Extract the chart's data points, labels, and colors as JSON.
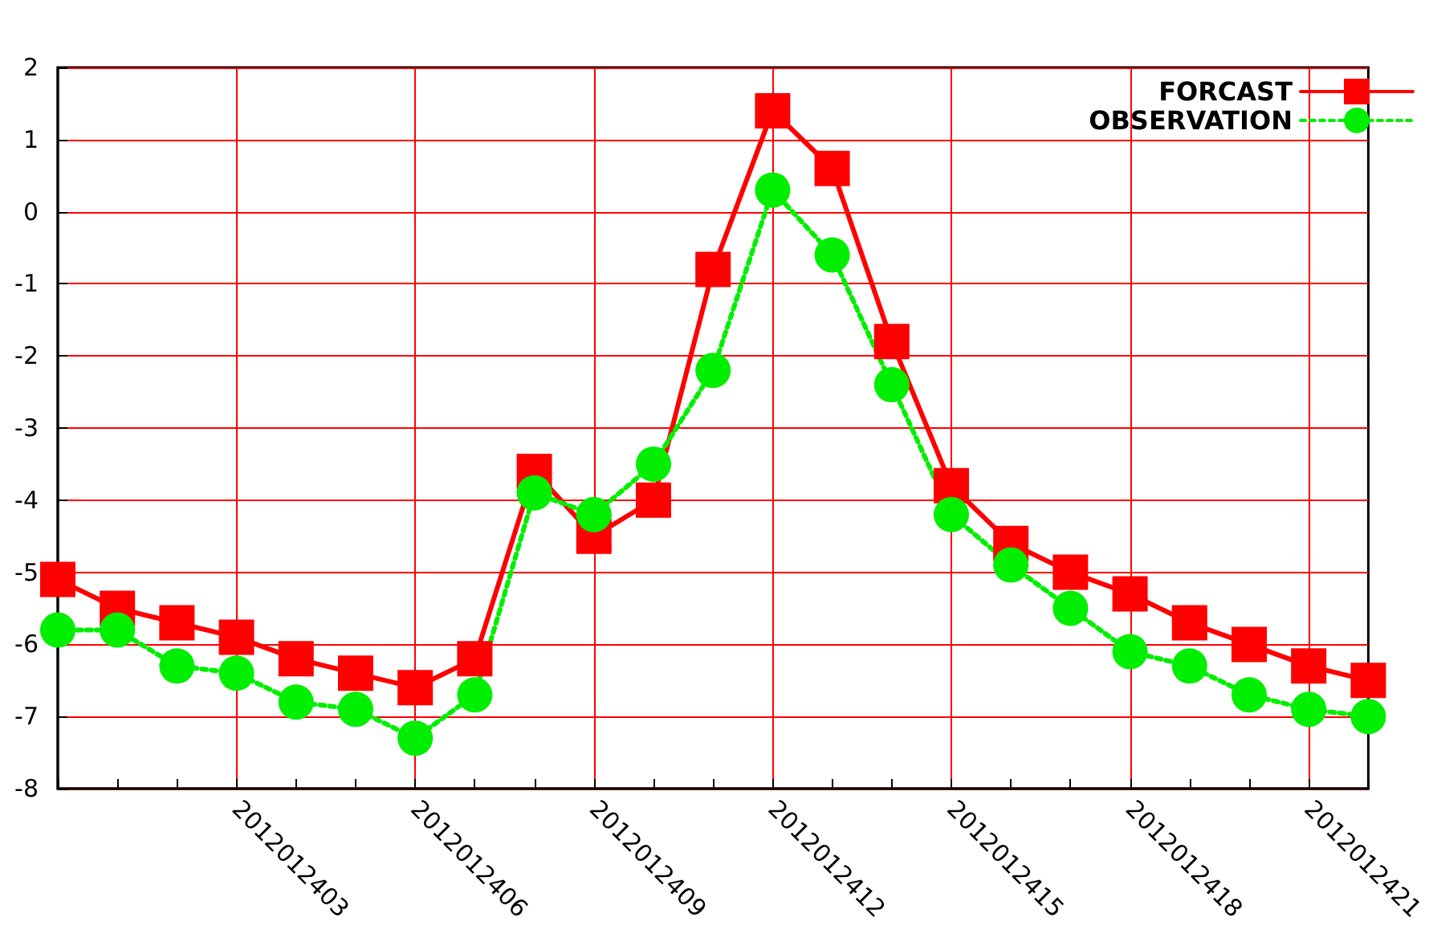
{
  "chart_data": {
    "type": "line",
    "categories": [
      null,
      null,
      null,
      "2012012403",
      null,
      null,
      "2012012406",
      null,
      null,
      "2012012409",
      null,
      null,
      "2012012412",
      null,
      null,
      "2012012415",
      null,
      null,
      "2012012418",
      null,
      null,
      "2012012421",
      null
    ],
    "series": [
      {
        "name": "FORCAST",
        "color": "#ff0000",
        "marker": "square",
        "line_style": "solid",
        "values": [
          -5.1,
          -5.5,
          -5.7,
          -5.9,
          -6.2,
          -6.4,
          -6.6,
          -6.2,
          -3.6,
          -4.5,
          -4.0,
          -0.8,
          1.4,
          0.6,
          -1.8,
          -3.8,
          -4.6,
          -5.0,
          -5.3,
          -5.7,
          -6.0,
          -6.3,
          -6.5
        ]
      },
      {
        "name": "OBSERVATION",
        "color": "#00ee00",
        "marker": "circle",
        "line_style": "dotted",
        "values": [
          -5.8,
          -5.8,
          -6.3,
          -6.4,
          -6.8,
          -6.9,
          -7.3,
          -6.7,
          -3.9,
          -4.2,
          -3.5,
          -2.2,
          0.3,
          -0.6,
          -2.4,
          -4.2,
          -4.9,
          -5.5,
          -6.1,
          -6.3,
          -6.7,
          -6.9,
          -7.0
        ]
      }
    ],
    "ylim": [
      -8,
      2
    ],
    "yticks": [
      -8,
      -7,
      -6,
      -5,
      -4,
      -3,
      -2,
      -1,
      0,
      1,
      2
    ],
    "grid": true,
    "legend": "top right"
  }
}
